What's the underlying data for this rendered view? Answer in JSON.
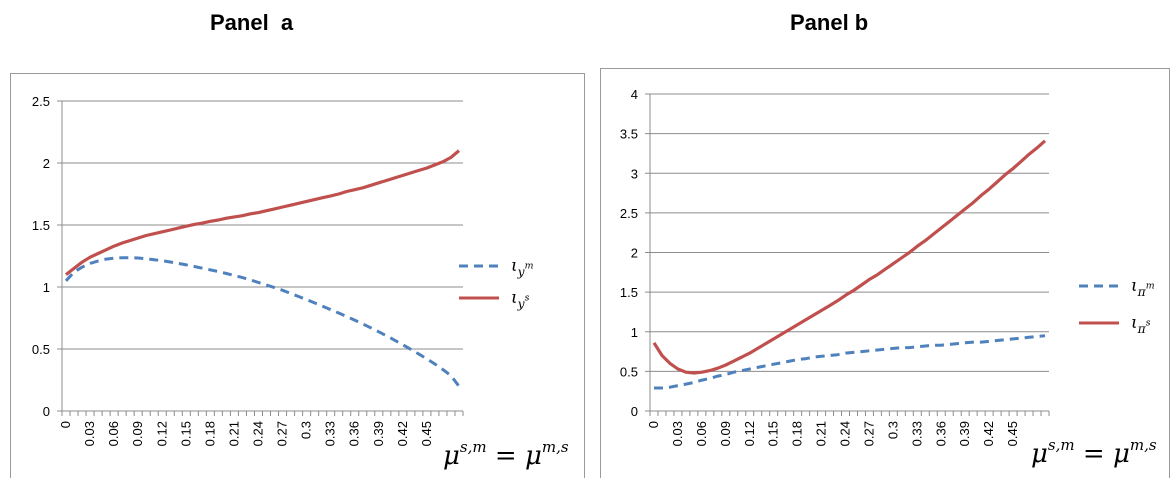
{
  "panels": {
    "a": {
      "title": "Panel  a"
    },
    "b": {
      "title": "Panel b"
    }
  },
  "chart_data": [
    {
      "type": "line",
      "title": "Panel  a",
      "xlabel": "μ^{s,m} = μ^{m,s}",
      "ylabel": "",
      "ylim": [
        0,
        2.5
      ],
      "y_ticks": [
        0,
        0.5,
        1,
        1.5,
        2,
        2.5
      ],
      "y_tick_labels": [
        "0",
        "0.5",
        "1",
        "1.5",
        "2",
        "2.5"
      ],
      "x": [
        0,
        0.01,
        0.02,
        0.03,
        0.04,
        0.05,
        0.06,
        0.07,
        0.08,
        0.09,
        0.1,
        0.11,
        0.12,
        0.13,
        0.14,
        0.15,
        0.16,
        0.17,
        0.18,
        0.19,
        0.2,
        0.21,
        0.22,
        0.23,
        0.24,
        0.25,
        0.26,
        0.27,
        0.28,
        0.29,
        0.3,
        0.31,
        0.32,
        0.33,
        0.34,
        0.35,
        0.36,
        0.37,
        0.38,
        0.39,
        0.4,
        0.41,
        0.42,
        0.43,
        0.44,
        0.45,
        0.46,
        0.47,
        0.48,
        0.49
      ],
      "x_tick_labels": [
        "0",
        "0.03",
        "0.06",
        "0.09",
        "0.12",
        "0.15",
        "0.18",
        "0.21",
        "0.24",
        "0.27",
        "0.3",
        "0.33",
        "0.36",
        "0.39",
        "0.42",
        "0.45"
      ],
      "grid": true,
      "legend": "right",
      "series": [
        {
          "name": "ι_{y^m}",
          "style": "dashed",
          "color": "#4f81bd",
          "values": [
            1.05,
            1.12,
            1.16,
            1.19,
            1.21,
            1.225,
            1.232,
            1.236,
            1.236,
            1.234,
            1.228,
            1.22,
            1.212,
            1.202,
            1.19,
            1.178,
            1.165,
            1.152,
            1.138,
            1.124,
            1.109,
            1.093,
            1.076,
            1.057,
            1.036,
            1.015,
            0.995,
            0.973,
            0.948,
            0.923,
            0.898,
            0.872,
            0.845,
            0.817,
            0.79,
            0.762,
            0.733,
            0.702,
            0.671,
            0.639,
            0.605,
            0.57,
            0.534,
            0.497,
            0.459,
            0.42,
            0.379,
            0.334,
            0.285,
            0.2
          ]
        },
        {
          "name": "ι_{y^s}",
          "style": "solid",
          "color": "#c0504d",
          "values": [
            1.1,
            1.15,
            1.2,
            1.24,
            1.27,
            1.3,
            1.33,
            1.355,
            1.375,
            1.395,
            1.415,
            1.43,
            1.445,
            1.46,
            1.475,
            1.49,
            1.505,
            1.515,
            1.53,
            1.54,
            1.555,
            1.565,
            1.575,
            1.59,
            1.6,
            1.615,
            1.63,
            1.645,
            1.66,
            1.675,
            1.69,
            1.705,
            1.72,
            1.735,
            1.75,
            1.77,
            1.785,
            1.8,
            1.82,
            1.84,
            1.86,
            1.88,
            1.9,
            1.92,
            1.94,
            1.96,
            1.985,
            2.01,
            2.045,
            2.1
          ]
        }
      ]
    },
    {
      "type": "line",
      "title": "Panel b",
      "xlabel": "μ^{s,m} = μ^{m,s}",
      "ylabel": "",
      "ylim": [
        0,
        4
      ],
      "y_ticks": [
        0,
        0.5,
        1,
        1.5,
        2,
        2.5,
        3,
        3.5,
        4
      ],
      "y_tick_labels": [
        "0",
        "0.5",
        "1",
        "1.5",
        "2",
        "2.5",
        "3",
        "3.5",
        "4"
      ],
      "x": [
        0,
        0.01,
        0.02,
        0.03,
        0.04,
        0.05,
        0.06,
        0.07,
        0.08,
        0.09,
        0.1,
        0.11,
        0.12,
        0.13,
        0.14,
        0.15,
        0.16,
        0.17,
        0.18,
        0.19,
        0.2,
        0.21,
        0.22,
        0.23,
        0.24,
        0.25,
        0.26,
        0.27,
        0.28,
        0.29,
        0.3,
        0.31,
        0.32,
        0.33,
        0.34,
        0.35,
        0.36,
        0.37,
        0.38,
        0.39,
        0.4,
        0.41,
        0.42,
        0.43,
        0.44,
        0.45,
        0.46,
        0.47,
        0.48,
        0.49
      ],
      "x_tick_labels": [
        "0",
        "0.03",
        "0.06",
        "0.09",
        "0.12",
        "0.15",
        "0.18",
        "0.21",
        "0.24",
        "0.27",
        "0.3",
        "0.33",
        "0.36",
        "0.39",
        "0.42",
        "0.45"
      ],
      "grid": true,
      "legend": "right",
      "series": [
        {
          "name": "ι_{π^m}",
          "style": "dashed",
          "color": "#4f81bd",
          "values": [
            0.29,
            0.29,
            0.3,
            0.32,
            0.34,
            0.36,
            0.39,
            0.41,
            0.44,
            0.46,
            0.49,
            0.51,
            0.53,
            0.55,
            0.57,
            0.59,
            0.61,
            0.63,
            0.65,
            0.66,
            0.68,
            0.69,
            0.7,
            0.71,
            0.73,
            0.74,
            0.75,
            0.76,
            0.77,
            0.78,
            0.79,
            0.8,
            0.8,
            0.81,
            0.82,
            0.83,
            0.83,
            0.84,
            0.85,
            0.86,
            0.87,
            0.87,
            0.88,
            0.89,
            0.9,
            0.91,
            0.92,
            0.93,
            0.94,
            0.95
          ]
        },
        {
          "name": "ι_{π^s}",
          "style": "solid",
          "color": "#c0504d",
          "values": [
            0.86,
            0.7,
            0.6,
            0.53,
            0.49,
            0.48,
            0.49,
            0.51,
            0.54,
            0.58,
            0.63,
            0.68,
            0.73,
            0.79,
            0.85,
            0.91,
            0.97,
            1.03,
            1.09,
            1.15,
            1.21,
            1.27,
            1.33,
            1.39,
            1.46,
            1.52,
            1.59,
            1.66,
            1.72,
            1.79,
            1.86,
            1.93,
            2.0,
            2.08,
            2.15,
            2.23,
            2.31,
            2.39,
            2.47,
            2.55,
            2.63,
            2.72,
            2.8,
            2.89,
            2.98,
            3.06,
            3.15,
            3.24,
            3.32,
            3.41
          ]
        }
      ]
    }
  ]
}
